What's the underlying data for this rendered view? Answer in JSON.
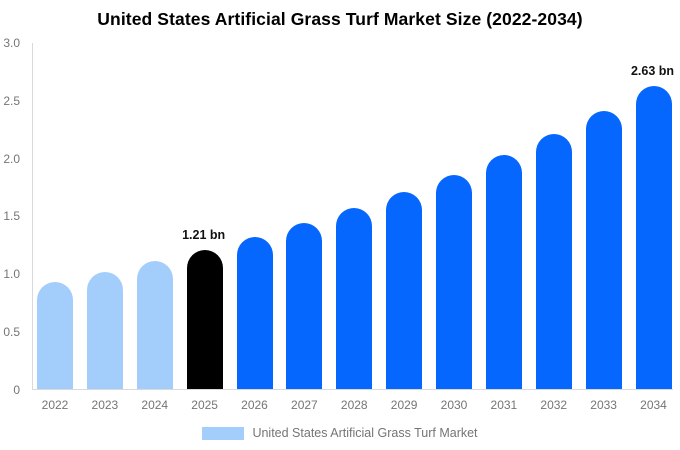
{
  "title": "United States Artificial Grass Turf Market Size (2022-2034)",
  "colors": {
    "past_bar": "#a3cefc",
    "highlight_bar": "#000000",
    "forecast_bar": "#0567fe",
    "axis_line": "#d9d9d9",
    "tick_text": "#757575",
    "annotation_text": "#111111",
    "title_text": "#000000"
  },
  "chart_data": {
    "type": "bar",
    "title": "United States Artificial Grass Turf Market Size (2022-2034)",
    "xlabel": "",
    "ylabel": "",
    "ylim": [
      0,
      3.0
    ],
    "yticks": [
      "3.0",
      "2.5",
      "2.0",
      "1.5",
      "1.0",
      "0.5",
      "0"
    ],
    "grid": false,
    "unit": "bn",
    "categories": [
      "2022",
      "2023",
      "2024",
      "2025",
      "2026",
      "2027",
      "2028",
      "2029",
      "2030",
      "2031",
      "2032",
      "2033",
      "2034"
    ],
    "values": [
      0.93,
      1.02,
      1.11,
      1.21,
      1.32,
      1.44,
      1.57,
      1.71,
      1.86,
      2.03,
      2.21,
      2.41,
      2.63
    ],
    "bar_colors": [
      "#a3cefc",
      "#a3cefc",
      "#a3cefc",
      "#000000",
      "#0567fe",
      "#0567fe",
      "#0567fe",
      "#0567fe",
      "#0567fe",
      "#0567fe",
      "#0567fe",
      "#0567fe",
      "#0567fe"
    ],
    "annotations": [
      {
        "index": 3,
        "text": "1.21 bn"
      },
      {
        "index": 12,
        "text": "2.63 bn"
      }
    ],
    "legend": [
      {
        "label": "United States Artificial Grass Turf Market",
        "color": "#a3cefc"
      }
    ],
    "legend_position": "bottom"
  }
}
